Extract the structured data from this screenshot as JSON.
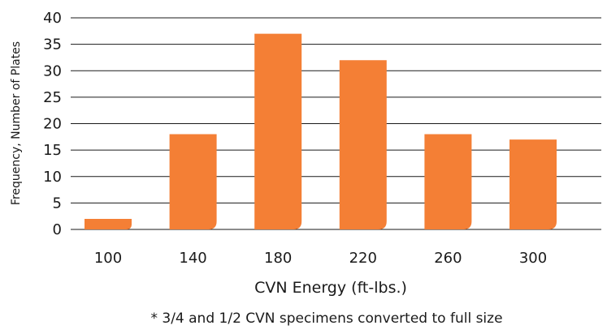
{
  "chart_data": {
    "type": "bar",
    "categories": [
      "100",
      "140",
      "180",
      "220",
      "260",
      "300"
    ],
    "values": [
      2,
      18,
      37,
      32,
      18,
      17
    ],
    "xlabel": "CVN Energy  (ft-lbs.)",
    "ylabel": "Frequency, Number of Plates",
    "ylim": [
      0,
      40
    ],
    "yticks": [
      0,
      5,
      10,
      15,
      20,
      25,
      30,
      35,
      40
    ],
    "footnote": "* 3/4 and 1/2 CVN specimens converted to full size",
    "grid": true,
    "legend": "none",
    "bar_color": "#f47f35",
    "grid_color": "#1a1a1a"
  }
}
